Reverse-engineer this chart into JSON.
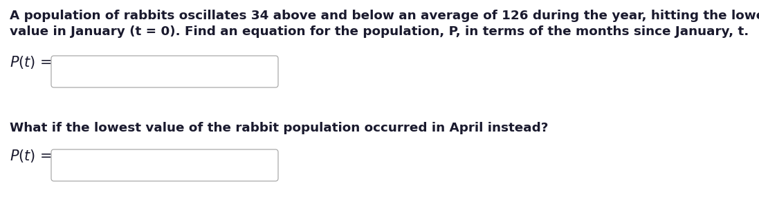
{
  "background_color": "#ffffff",
  "paragraph1_line1": "A population of rabbits oscillates 34 above and below an average of 126 during the year, hitting the lowest",
  "paragraph1_line2": "value in January (t = 0). Find an equation for the population, P, in terms of the months since January, t.",
  "label1": "$P(t)$ =",
  "paragraph2": "What if the lowest value of the rabbit population occurred in April instead?",
  "label2": "$P(t)$ =",
  "text_color": "#1a1a2e",
  "box_edge_color": "#aaaaaa",
  "body_font_size": 13.2,
  "label_font_size": 15.0,
  "fig_width": 10.97,
  "fig_height": 2.89,
  "dpi": 100
}
